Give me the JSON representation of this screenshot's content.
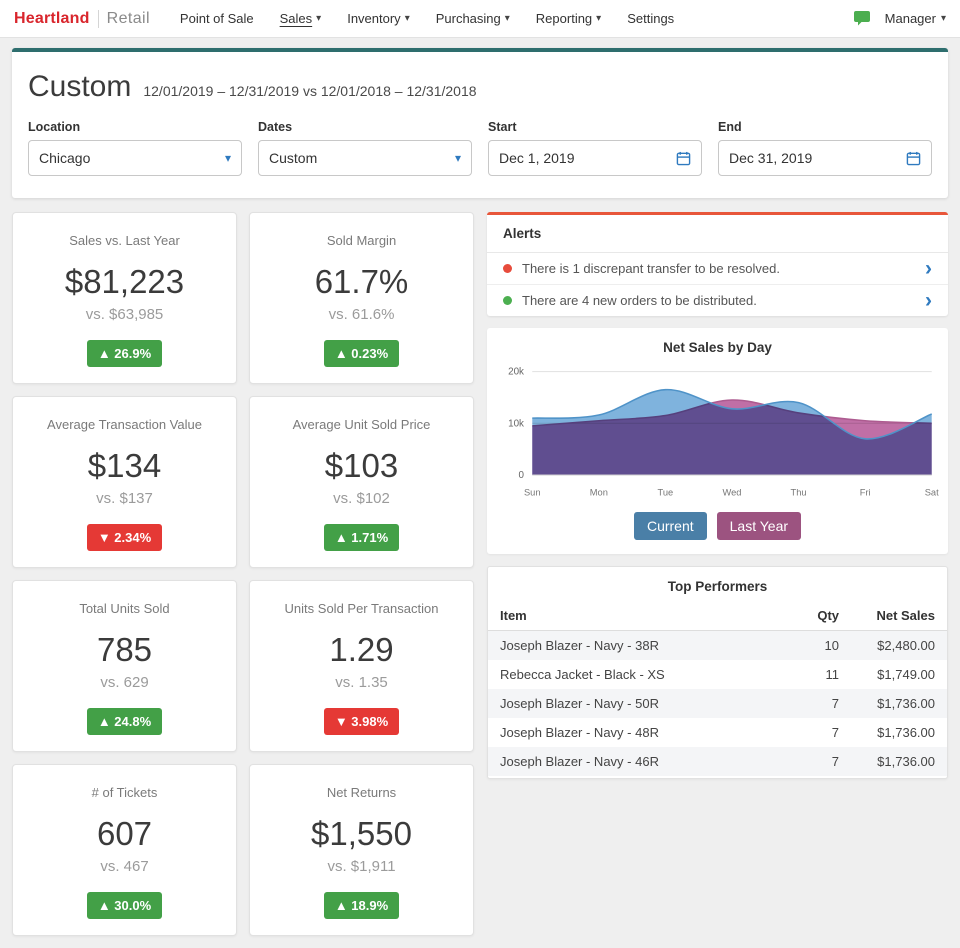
{
  "nav": {
    "brand": "Heartland",
    "brand_color": "#d9252c",
    "product": "Retail",
    "items": [
      {
        "label": "Point of Sale"
      },
      {
        "label": "Sales"
      },
      {
        "label": "Inventory"
      },
      {
        "label": "Purchasing"
      },
      {
        "label": "Reporting"
      },
      {
        "label": "Settings"
      }
    ],
    "user_menu": "Manager"
  },
  "header": {
    "title": "Custom",
    "date_range": "12/01/2019 – 12/31/2019 vs 12/01/2018 – 12/31/2018"
  },
  "filters": [
    {
      "label": "Location",
      "value": "Chicago"
    },
    {
      "label": "Dates",
      "value": "Custom"
    },
    {
      "label": "Start",
      "value": "Dec 1, 2019"
    },
    {
      "label": "End",
      "value": "Dec 31, 2019"
    }
  ],
  "metrics": [
    {
      "label": "Sales vs. Last Year",
      "value": "$81,223",
      "compare": "vs. $63,985",
      "delta": "▲ 26.9%",
      "badge_color": "#43a047"
    },
    {
      "label": "Sold Margin",
      "value": "61.7%",
      "compare": "vs. 61.6%",
      "delta": "▲ 0.23%",
      "badge_color": "#43a047"
    },
    {
      "label": "Average Transaction Value",
      "value": "$134",
      "compare": "vs. $137",
      "delta": "▼ 2.34%",
      "badge_color": "#e53935"
    },
    {
      "label": "Average Unit Sold Price",
      "value": "$103",
      "compare": "vs. $102",
      "delta": "▲ 1.71%",
      "badge_color": "#43a047"
    },
    {
      "label": "Total Units Sold",
      "value": "785",
      "compare": "vs. 629",
      "delta": "▲ 24.8%",
      "badge_color": "#43a047"
    },
    {
      "label": "Units Sold Per Transaction",
      "value": "1.29",
      "compare": "vs. 1.35",
      "delta": "▼ 3.98%",
      "badge_color": "#e53935"
    },
    {
      "label": "# of Tickets",
      "value": "607",
      "compare": "vs. 467",
      "delta": "▲ 30.0%",
      "badge_color": "#43a047"
    },
    {
      "label": "Net Returns",
      "value": "$1,550",
      "compare": "vs. $1,911",
      "delta": "▲ 18.9%",
      "badge_color": "#43a047"
    }
  ],
  "alerts": {
    "title": "Alerts",
    "items": [
      {
        "text": "There is 1 discrepant transfer to be resolved.",
        "dot_color": "#e74c3c"
      },
      {
        "text": "There are 4 new orders to be distributed.",
        "dot_color": "#4caf50"
      }
    ]
  },
  "chart_data": {
    "type": "area",
    "title": "Net Sales by Day",
    "x": [
      "Sun",
      "Mon",
      "Tue",
      "Wed",
      "Thu",
      "Fri",
      "Sat"
    ],
    "series": [
      {
        "name": "Current",
        "values": [
          11000,
          11600,
          16500,
          12800,
          14000,
          7000,
          11800
        ],
        "fill": "#7fb3dd",
        "stroke": "#4f93c8",
        "button_color": "#4a7fa7"
      },
      {
        "name": "Last Year",
        "values": [
          9500,
          10500,
          11500,
          14500,
          12000,
          10500,
          10000
        ],
        "fill": "#c06fa6",
        "stroke": "#ad5b90",
        "button_color": "#9c5380"
      }
    ],
    "ylim": [
      0,
      20000
    ],
    "yticks": [
      {
        "label": "0",
        "value": 0
      },
      {
        "label": "10k",
        "value": 10000
      },
      {
        "label": "20k",
        "value": 20000
      }
    ],
    "xlabel": "",
    "ylabel": "",
    "grid": true,
    "legend_position": "bottom"
  },
  "top_performers": {
    "title": "Top Performers",
    "columns": [
      "Item",
      "Qty",
      "Net Sales"
    ],
    "rows": [
      [
        "Joseph Blazer - Navy - 38R",
        "10",
        "$2,480.00"
      ],
      [
        "Rebecca Jacket - Black - XS",
        "11",
        "$1,749.00"
      ],
      [
        "Joseph Blazer - Navy - 50R",
        "7",
        "$1,736.00"
      ],
      [
        "Joseph Blazer - Navy - 48R",
        "7",
        "$1,736.00"
      ],
      [
        "Joseph Blazer - Navy - 46R",
        "7",
        "$1,736.00"
      ]
    ]
  }
}
